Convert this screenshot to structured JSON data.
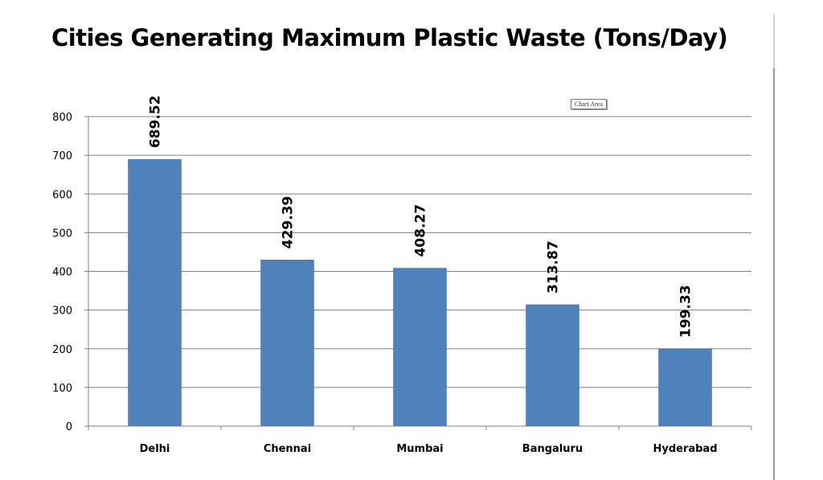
{
  "chart_data": {
    "type": "bar",
    "title": "Cities Generating Maximum Plastic Waste (Tons/Day)",
    "categories": [
      "Delhi",
      "Chennai",
      "Mumbai",
      "Bangaluru",
      "Hyderabad"
    ],
    "values": [
      689.52,
      429.39,
      408.27,
      313.87,
      199.33
    ],
    "data_labels": [
      "689.52",
      "429.39",
      "408.27",
      "313.87",
      "199.33"
    ],
    "xlabel": "",
    "ylabel": "",
    "ylim": [
      0,
      800
    ],
    "yticks": [
      0,
      100,
      200,
      300,
      400,
      500,
      600,
      700,
      800
    ],
    "grid": true,
    "legend": "none",
    "bar_color": "#4f81bd",
    "gridline_color": "#808080"
  },
  "overlay": {
    "chart_area_tooltip": "Chart Area"
  }
}
